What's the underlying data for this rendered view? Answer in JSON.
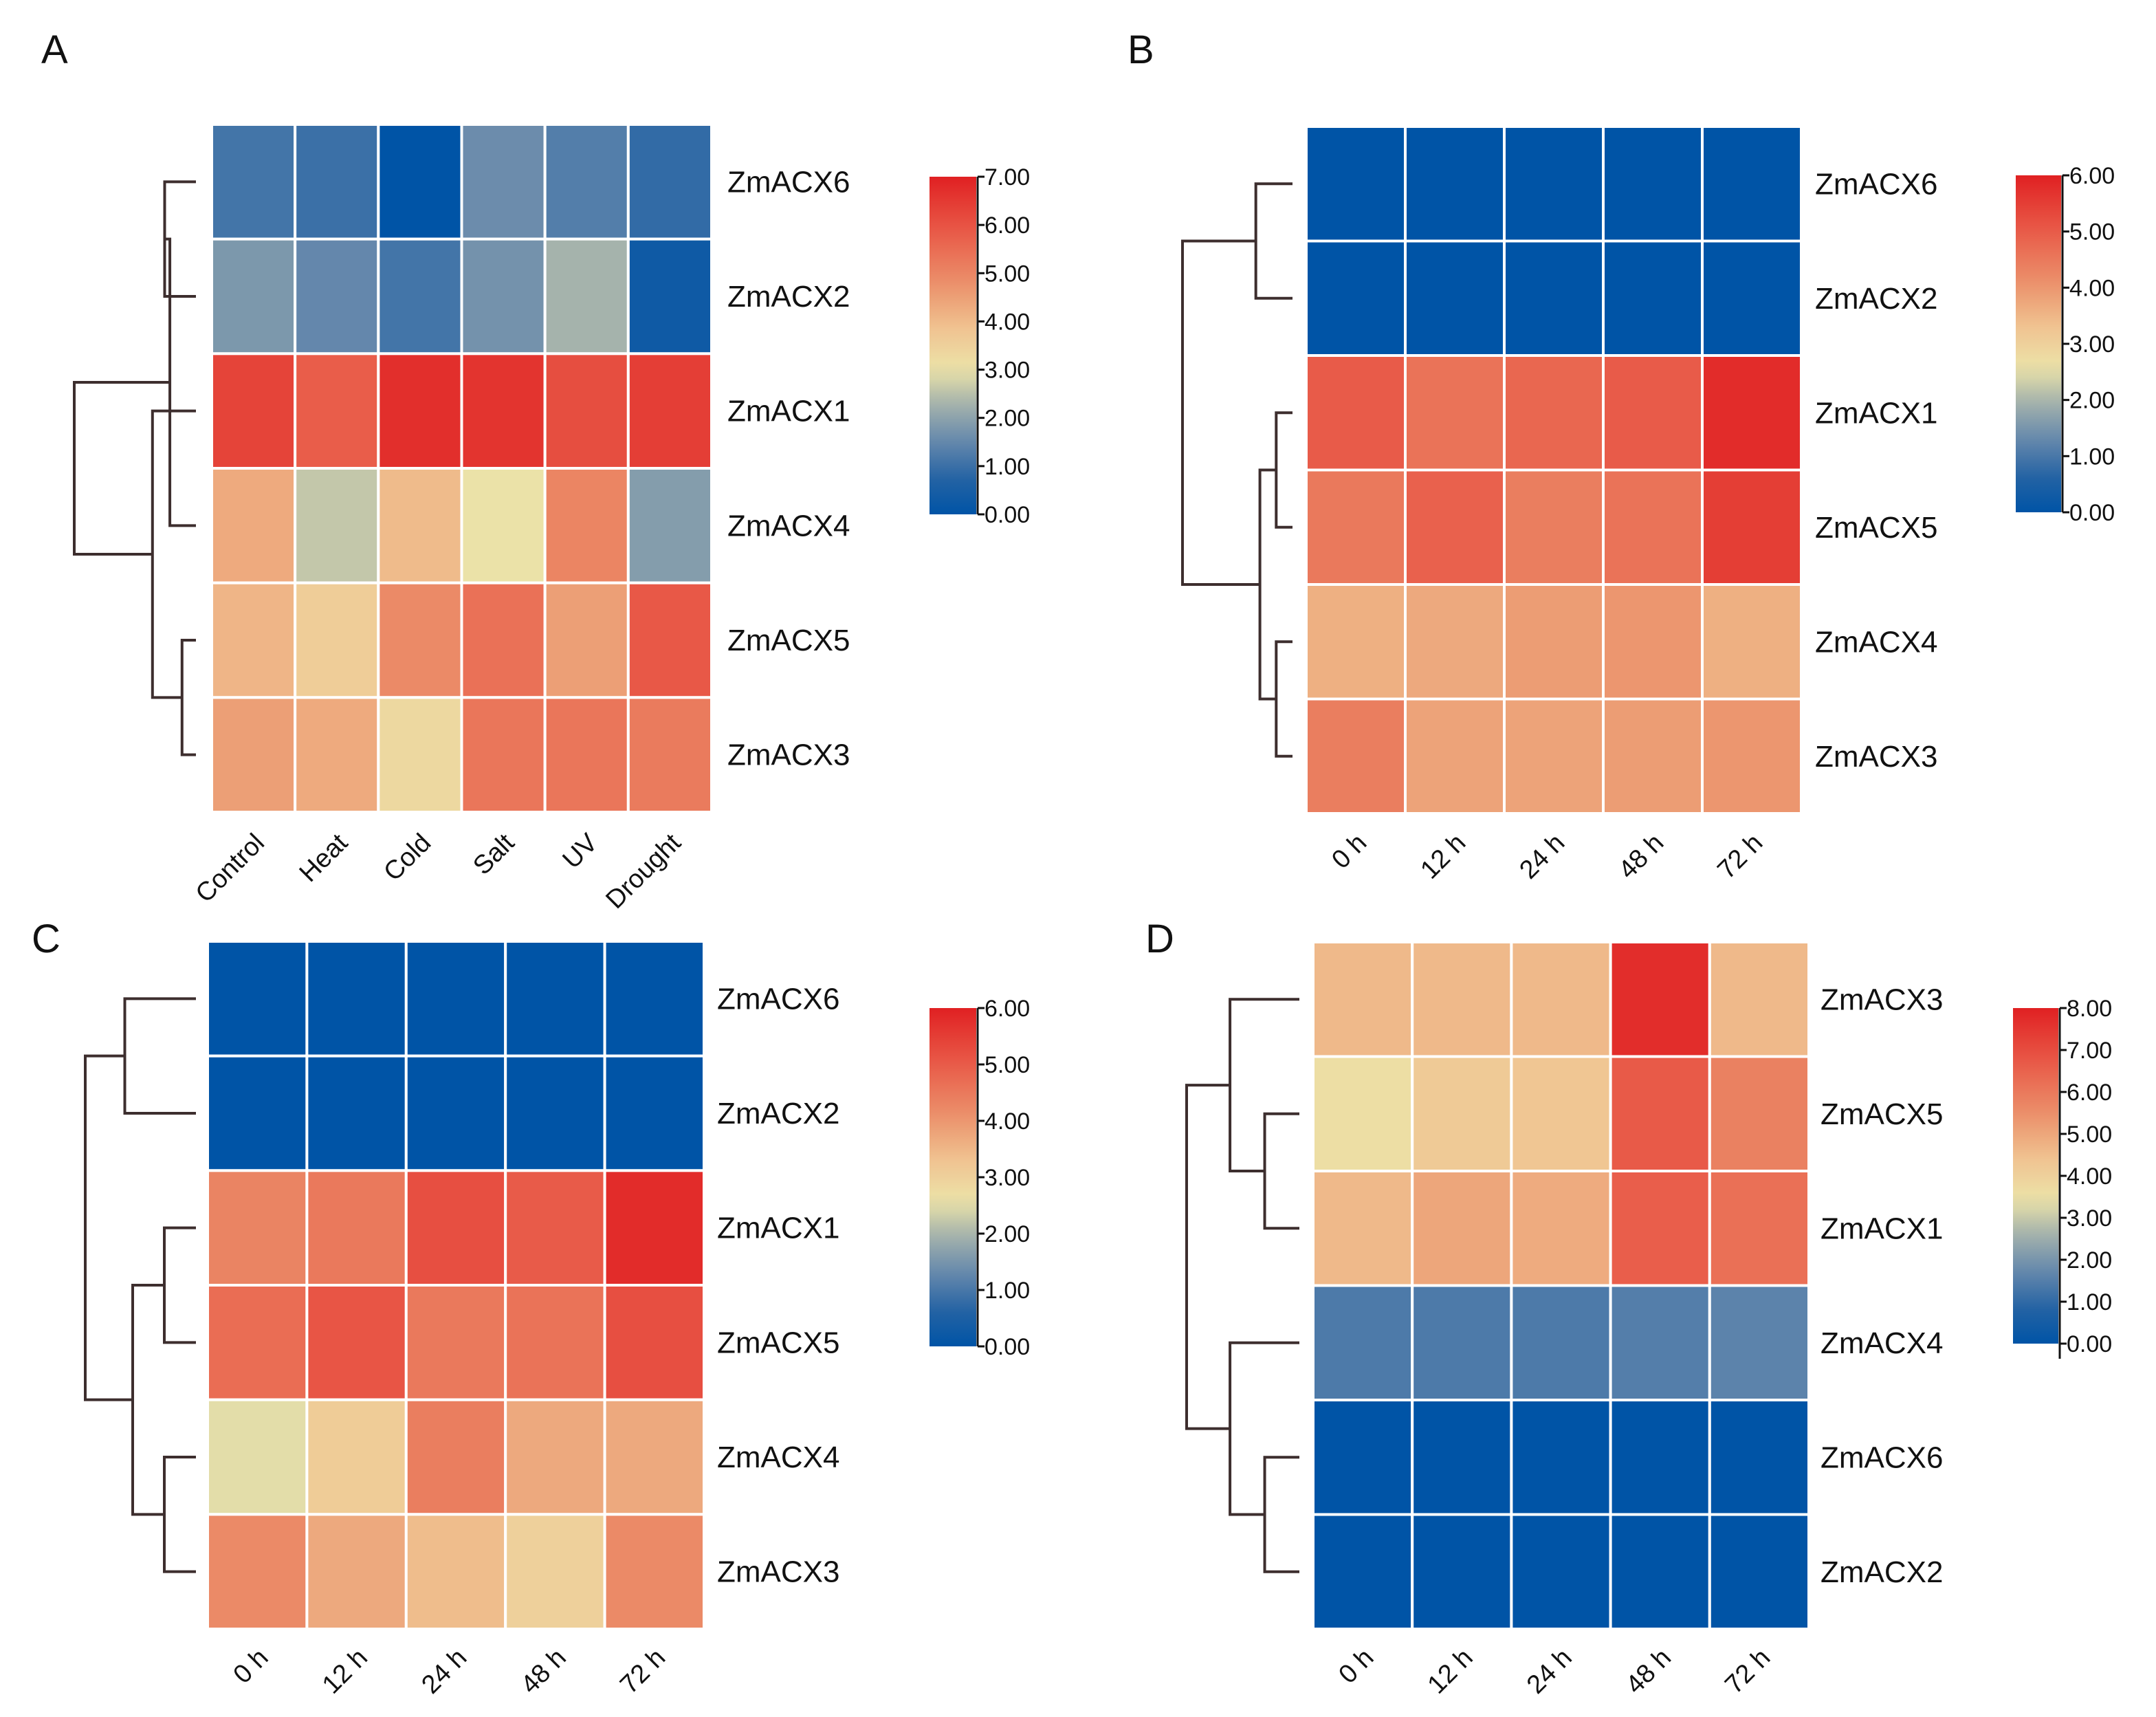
{
  "chart_data": [
    {
      "type": "heatmap",
      "panel": "A",
      "columns": [
        "Control",
        "Heat",
        "Cold",
        "Salt",
        "UV",
        "Drought"
      ],
      "rows": [
        "ZmACX6",
        "ZmACX2",
        "ZmACX1",
        "ZmACX4",
        "ZmACX5",
        "ZmACX3"
      ],
      "values": [
        [
          1.1,
          1.0,
          0.0,
          1.6,
          1.3,
          0.9
        ],
        [
          1.8,
          1.5,
          1.1,
          1.7,
          2.3,
          0.3
        ],
        [
          6.3,
          5.8,
          6.7,
          6.6,
          6.1,
          6.4
        ],
        [
          4.3,
          2.6,
          4.0,
          3.0,
          5.0,
          1.9
        ],
        [
          4.1,
          3.6,
          4.9,
          5.4,
          4.5,
          5.9
        ],
        [
          4.5,
          4.3,
          3.3,
          5.3,
          5.3,
          5.2
        ]
      ],
      "colorbar": {
        "min": 0,
        "max": 7,
        "ticks": [
          "7.00",
          "6.00",
          "5.00",
          "4.00",
          "3.00",
          "2.00",
          "1.00",
          "0.00"
        ]
      },
      "tree": {
        "leaves": [
          "ZmACX6",
          "ZmACX2",
          "ZmACX1",
          "ZmACX4",
          "ZmACX5",
          "ZmACX3"
        ],
        "merges": [
          [
            0,
            1,
            0.9
          ],
          [
            4,
            5,
            0.4
          ],
          [
            3,
            6,
            0.75
          ],
          [
            2,
            7,
            1.25
          ],
          [
            8,
            9,
            3.5
          ]
        ]
      }
    },
    {
      "type": "heatmap",
      "panel": "B",
      "columns": [
        "0 h",
        "12 h",
        "24 h",
        "48 h",
        "72 h"
      ],
      "rows": [
        "ZmACX6",
        "ZmACX2",
        "ZmACX1",
        "ZmACX5",
        "ZmACX4",
        "ZmACX3"
      ],
      "values": [
        [
          0.0,
          0.0,
          0.0,
          0.0,
          0.0
        ],
        [
          0.0,
          0.0,
          0.0,
          0.0,
          0.0
        ],
        [
          5.0,
          4.6,
          4.8,
          5.0,
          5.8
        ],
        [
          4.5,
          4.9,
          4.4,
          4.6,
          5.5
        ],
        [
          3.6,
          3.7,
          3.9,
          4.0,
          3.6
        ],
        [
          4.4,
          3.8,
          3.8,
          3.9,
          4.0
        ]
      ],
      "colorbar": {
        "min": 0,
        "max": 6,
        "ticks": [
          "6.00",
          "5.00",
          "4.00",
          "3.00",
          "2.00",
          "1.00",
          "0.00"
        ]
      },
      "tree": {
        "leaves": [
          "ZmACX6",
          "ZmACX2",
          "ZmACX1",
          "ZmACX5",
          "ZmACX4",
          "ZmACX3"
        ],
        "merges": [
          [
            0,
            1,
            0.9
          ],
          [
            2,
            3,
            0.4
          ],
          [
            4,
            5,
            0.4
          ],
          [
            7,
            8,
            0.8
          ],
          [
            6,
            9,
            2.7
          ]
        ]
      }
    },
    {
      "type": "heatmap",
      "panel": "C",
      "columns": [
        "0 h",
        "12 h",
        "24 h",
        "48 h",
        "72 h"
      ],
      "rows": [
        "ZmACX6",
        "ZmACX2",
        "ZmACX1",
        "ZmACX5",
        "ZmACX4",
        "ZmACX3"
      ],
      "values": [
        [
          0.0,
          0.0,
          0.0,
          0.0,
          0.0
        ],
        [
          0.0,
          0.0,
          0.0,
          0.0,
          0.0
        ],
        [
          4.3,
          4.5,
          5.2,
          5.0,
          5.8
        ],
        [
          4.7,
          5.1,
          4.5,
          4.6,
          5.2
        ],
        [
          2.5,
          3.1,
          4.4,
          3.7,
          3.7
        ],
        [
          4.2,
          3.7,
          3.4,
          3.0,
          4.2
        ]
      ],
      "colorbar": {
        "min": 0,
        "max": 6,
        "ticks": [
          "6.00",
          "5.00",
          "4.00",
          "3.00",
          "2.00",
          "1.00",
          "0.00"
        ]
      },
      "tree": {
        "leaves": [
          "ZmACX6",
          "ZmACX2",
          "ZmACX1",
          "ZmACX5",
          "ZmACX4",
          "ZmACX3"
        ],
        "merges": [
          [
            0,
            1,
            0.9
          ],
          [
            2,
            3,
            0.4
          ],
          [
            4,
            5,
            0.4
          ],
          [
            7,
            8,
            0.8
          ],
          [
            6,
            9,
            1.4
          ]
        ]
      }
    },
    {
      "type": "heatmap",
      "panel": "D",
      "columns": [
        "0 h",
        "12 h",
        "24 h",
        "48 h",
        "72 h"
      ],
      "rows": [
        "ZmACX3",
        "ZmACX5",
        "ZmACX1",
        "ZmACX4",
        "ZmACX6",
        "ZmACX2"
      ],
      "values": [
        [
          4.6,
          4.6,
          4.6,
          7.7,
          4.6
        ],
        [
          3.6,
          4.2,
          4.3,
          6.7,
          5.8
        ],
        [
          4.6,
          5.0,
          4.9,
          6.6,
          6.2
        ],
        [
          1.4,
          1.4,
          1.4,
          1.5,
          1.6
        ],
        [
          0.0,
          0.0,
          0.0,
          0.0,
          0.0
        ],
        [
          0.0,
          0.0,
          0.0,
          0.0,
          0.0
        ]
      ],
      "colorbar": {
        "min": 0,
        "max": 8,
        "ticks": [
          "8.00",
          "7.00",
          "6.00",
          "5.00",
          "4.00",
          "3.00",
          "2.00",
          "1.00",
          "0.00"
        ]
      },
      "tree": {
        "leaves": [
          "ZmACX3",
          "ZmACX5",
          "ZmACX1",
          "ZmACX4",
          "ZmACX6",
          "ZmACX2"
        ],
        "merges": [
          [
            1,
            2,
            0.4
          ],
          [
            0,
            6,
            0.8
          ],
          [
            4,
            5,
            0.4
          ],
          [
            3,
            8,
            0.8
          ],
          [
            7,
            9,
            1.3
          ]
        ]
      }
    }
  ]
}
